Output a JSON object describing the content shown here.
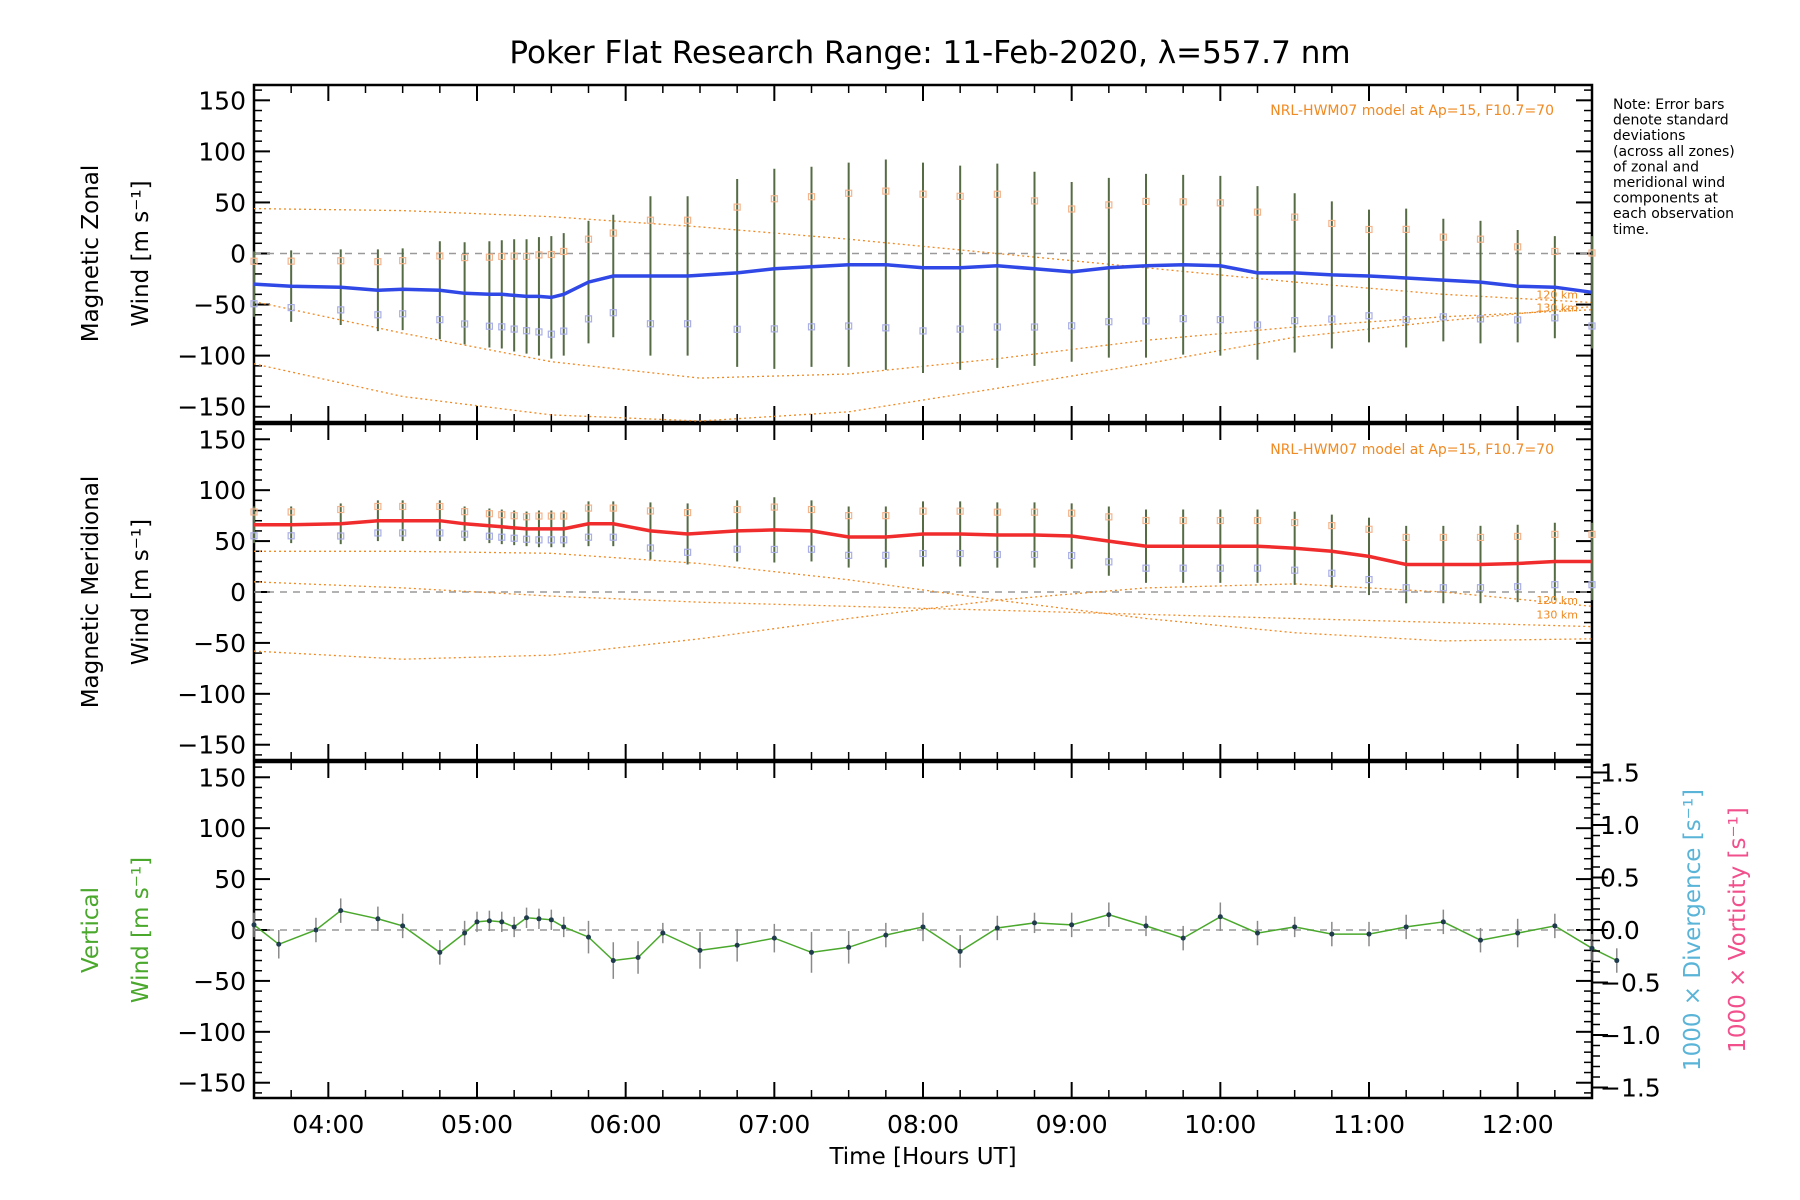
{
  "title": "Poker Flat Research Range: 11-Feb-2020, λ=557.7 nm",
  "note": [
    "Note: Error bars",
    "denote standard",
    "deviations",
    "(across all zones)",
    "of zonal and",
    "meridional wind",
    "components at",
    "each observation",
    "time."
  ],
  "model_label": "NRL-HWM07 model at Ap=15, F10.7=70",
  "altitude_labels": [
    "120 km",
    "130 km"
  ],
  "colors": {
    "zonal": "#2f48e6",
    "meridional": "#f02c2c",
    "vertical": "#4aa82c",
    "model": "#f08a24",
    "error_bar": "#556b44",
    "zone_samples": "#a9aee6",
    "divergence": "#5ab4d8",
    "vorticity": "#f2508c",
    "zero_line": "#999999"
  },
  "chart_data": [
    {
      "type": "line",
      "panel": "zonal",
      "ylabel": [
        "Magnetic Zonal",
        "Wind [m s⁻¹]"
      ],
      "ylim": [
        -165,
        165
      ],
      "yticks": [
        "150",
        "100",
        "50",
        "0",
        "−50",
        "−100",
        "−150"
      ],
      "xlim": [
        "03:30",
        "12:30"
      ],
      "zero_line": true,
      "series": [
        {
          "kind": "mean",
          "x": [
            "03:30",
            "03:45",
            "04:05",
            "04:20",
            "04:30",
            "04:45",
            "04:55",
            "05:05",
            "05:10",
            "05:15",
            "05:20",
            "05:25",
            "05:30",
            "05:35",
            "05:45",
            "05:55",
            "06:10",
            "06:25",
            "06:45",
            "07:00",
            "07:15",
            "07:30",
            "07:45",
            "08:00",
            "08:15",
            "08:30",
            "08:45",
            "09:00",
            "09:15",
            "09:30",
            "09:45",
            "10:00",
            "10:15",
            "10:30",
            "10:45",
            "11:00",
            "11:15",
            "11:30",
            "11:45",
            "12:00",
            "12:15",
            "12:30"
          ],
          "y": [
            -30,
            -32,
            -33,
            -36,
            -35,
            -36,
            -39,
            -40,
            -40,
            -41,
            -42,
            -42,
            -43,
            -40,
            -28,
            -22,
            -22,
            -22,
            -19,
            -15,
            -13,
            -11,
            -11,
            -14,
            -14,
            -12,
            -15,
            -18,
            -14,
            -12,
            -11,
            -12,
            -19,
            -19,
            -21,
            -22,
            -24,
            -26,
            -28,
            -32,
            -33,
            -38
          ],
          "err": [
            32,
            35,
            37,
            40,
            40,
            48,
            50,
            52,
            53,
            55,
            56,
            58,
            60,
            60,
            60,
            60,
            78,
            78,
            92,
            98,
            98,
            100,
            103,
            103,
            100,
            100,
            95,
            88,
            88,
            90,
            88,
            88,
            85,
            78,
            72,
            65,
            68,
            60,
            60,
            55,
            50,
            55
          ]
        },
        {
          "kind": "model",
          "label": "120 km",
          "x": [
            "03:30",
            "04:30",
            "05:30",
            "06:30",
            "07:30",
            "08:30",
            "09:30",
            "10:30",
            "11:30",
            "12:30"
          ],
          "y": [
            -47,
            -78,
            -106,
            -122,
            -118,
            -103,
            -85,
            -72,
            -62,
            -55
          ]
        },
        {
          "kind": "model",
          "label": "130 km",
          "x": [
            "03:30",
            "04:30",
            "05:30",
            "06:30",
            "07:30",
            "08:30",
            "09:30",
            "10:30",
            "11:30",
            "12:30"
          ],
          "y": [
            -108,
            -140,
            -158,
            -165,
            -155,
            -132,
            -108,
            -82,
            -66,
            -52
          ]
        },
        {
          "kind": "model",
          "label": "",
          "x": [
            "03:30",
            "04:30",
            "05:30",
            "06:30",
            "07:30",
            "08:30",
            "09:30",
            "10:30",
            "11:30",
            "12:30"
          ],
          "y": [
            44,
            42,
            36,
            26,
            14,
            0,
            -14,
            -28,
            -40,
            -48
          ]
        }
      ]
    },
    {
      "type": "line",
      "panel": "meridional",
      "ylabel": [
        "Magnetic Meridional",
        "Wind [m s⁻¹]"
      ],
      "ylim": [
        -165,
        165
      ],
      "yticks": [
        "150",
        "100",
        "50",
        "0",
        "−50",
        "−100",
        "−150"
      ],
      "xlim": [
        "03:30",
        "12:30"
      ],
      "zero_line": true,
      "series": [
        {
          "kind": "mean",
          "x": [
            "03:30",
            "03:45",
            "04:05",
            "04:20",
            "04:30",
            "04:45",
            "04:55",
            "05:05",
            "05:10",
            "05:15",
            "05:20",
            "05:25",
            "05:30",
            "05:35",
            "05:45",
            "05:55",
            "06:10",
            "06:25",
            "06:45",
            "07:00",
            "07:15",
            "07:30",
            "07:45",
            "08:00",
            "08:15",
            "08:30",
            "08:45",
            "09:00",
            "09:15",
            "09:30",
            "09:45",
            "10:00",
            "10:15",
            "10:30",
            "10:45",
            "11:00",
            "11:15",
            "11:30",
            "11:45",
            "12:00",
            "12:15",
            "12:30"
          ],
          "y": [
            66,
            66,
            67,
            70,
            70,
            70,
            67,
            65,
            64,
            63,
            62,
            62,
            62,
            62,
            67,
            67,
            60,
            57,
            60,
            61,
            60,
            54,
            54,
            57,
            57,
            56,
            56,
            55,
            50,
            45,
            45,
            45,
            45,
            43,
            40,
            35,
            27,
            27,
            27,
            28,
            30,
            30
          ],
          "err": [
            18,
            18,
            20,
            20,
            20,
            20,
            17,
            17,
            17,
            17,
            17,
            18,
            18,
            18,
            22,
            22,
            28,
            30,
            30,
            32,
            30,
            30,
            30,
            32,
            32,
            32,
            32,
            32,
            34,
            36,
            36,
            36,
            36,
            36,
            36,
            38,
            38,
            38,
            38,
            38,
            38,
            38
          ]
        },
        {
          "kind": "model",
          "label": "120 km",
          "x": [
            "03:30",
            "04:30",
            "05:30",
            "06:30",
            "07:30",
            "08:30",
            "09:30",
            "10:30",
            "11:30",
            "12:30"
          ],
          "y": [
            40,
            40,
            38,
            28,
            12,
            -8,
            -26,
            -40,
            -48,
            -46
          ]
        },
        {
          "kind": "model",
          "label": "130 km",
          "x": [
            "03:30",
            "04:30",
            "05:30",
            "06:30",
            "07:30",
            "08:30",
            "09:30",
            "10:30",
            "11:30",
            "12:30"
          ],
          "y": [
            10,
            4,
            -4,
            -10,
            -14,
            -18,
            -22,
            -26,
            -30,
            -34
          ]
        },
        {
          "kind": "model",
          "label": "",
          "x": [
            "03:30",
            "04:30",
            "05:30",
            "06:30",
            "07:30",
            "08:30",
            "09:30",
            "10:30",
            "11:30",
            "12:30"
          ],
          "y": [
            -58,
            -66,
            -62,
            -46,
            -26,
            -8,
            4,
            8,
            0,
            -14
          ]
        }
      ]
    },
    {
      "type": "line",
      "panel": "vertical",
      "ylabel": [
        "Vertical",
        "Wind [m s⁻¹]"
      ],
      "ylim": [
        -165,
        165
      ],
      "yticks": [
        "150",
        "100",
        "50",
        "0",
        "−50",
        "−100",
        "−150"
      ],
      "y2label": [
        "1000 × Divergence [s⁻¹]",
        "1000 × Vorticity [s⁻¹]"
      ],
      "y2lim": [
        -1.6,
        1.6
      ],
      "y2ticks": [
        "1.5",
        "1.0",
        "0.5",
        "0.0",
        "−0.5",
        "−1.0",
        "−1.5"
      ],
      "xlim": [
        "03:30",
        "12:30"
      ],
      "xticks": [
        "04:00",
        "05:00",
        "06:00",
        "07:00",
        "08:00",
        "09:00",
        "10:00",
        "11:00",
        "12:00"
      ],
      "xlabel": "Time [Hours UT]",
      "zero_line": true,
      "series": [
        {
          "kind": "mean",
          "x": [
            "03:30",
            "03:40",
            "03:55",
            "04:05",
            "04:20",
            "04:30",
            "04:45",
            "04:55",
            "05:00",
            "05:05",
            "05:10",
            "05:15",
            "05:20",
            "05:25",
            "05:30",
            "05:35",
            "05:45",
            "05:55",
            "06:05",
            "06:15",
            "06:30",
            "06:45",
            "07:00",
            "07:15",
            "07:30",
            "07:45",
            "08:00",
            "08:15",
            "08:30",
            "08:45",
            "09:00",
            "09:15",
            "09:30",
            "09:45",
            "10:00",
            "10:15",
            "10:30",
            "10:45",
            "11:00",
            "11:15",
            "11:30",
            "11:45",
            "12:00",
            "12:15",
            "12:30",
            "12:40"
          ],
          "y": [
            5,
            -14,
            0,
            19,
            11,
            4,
            -22,
            -3,
            8,
            9,
            8,
            3,
            12,
            11,
            10,
            3,
            -7,
            -30,
            -27,
            -3,
            -20,
            -15,
            -8,
            -22,
            -17,
            -5,
            3,
            -21,
            2,
            7,
            5,
            15,
            4,
            -8,
            13,
            -3,
            3,
            -4,
            -4,
            3,
            8,
            -10,
            -3,
            4,
            -18,
            -30
          ],
          "err": [
            12,
            14,
            12,
            12,
            12,
            12,
            12,
            12,
            10,
            10,
            10,
            10,
            10,
            10,
            10,
            10,
            16,
            18,
            16,
            10,
            18,
            16,
            14,
            20,
            16,
            12,
            14,
            16,
            12,
            10,
            12,
            12,
            10,
            12,
            14,
            12,
            10,
            12,
            12,
            12,
            12,
            12,
            14,
            12,
            14,
            12
          ]
        }
      ]
    }
  ]
}
